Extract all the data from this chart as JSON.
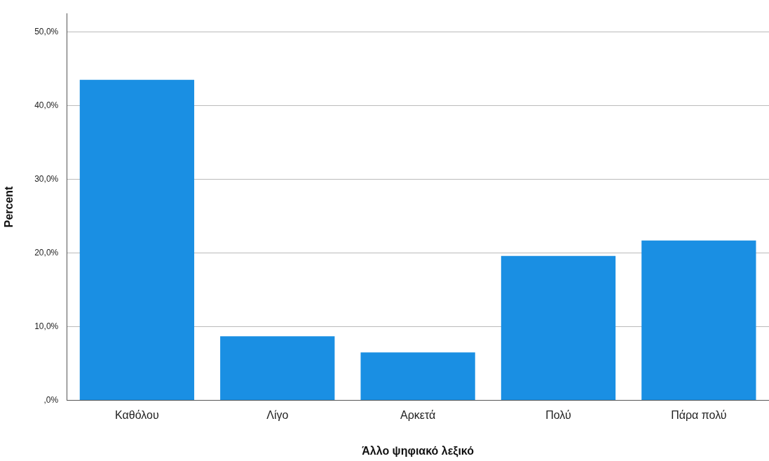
{
  "chart_data": {
    "type": "bar",
    "xlabel": "Άλλο ψηφιακό λεξικό",
    "ylabel": "Percent",
    "categories": [
      "Καθόλου",
      "Λίγο",
      "Αρκετά",
      "Πολύ",
      "Πάρα πολύ"
    ],
    "values": [
      43.5,
      8.7,
      6.5,
      19.6,
      21.7
    ],
    "color": "#1a8fe3",
    "ylim": [
      0,
      52.5
    ],
    "yticks": [
      {
        "value": 0,
        "label": ",0%"
      },
      {
        "value": 10,
        "label": "10,0%"
      },
      {
        "value": 20,
        "label": "20,0%"
      },
      {
        "value": 30,
        "label": "30,0%"
      },
      {
        "value": 40,
        "label": "40,0%"
      },
      {
        "value": 50,
        "label": "50,0%"
      }
    ],
    "grid": "y"
  }
}
